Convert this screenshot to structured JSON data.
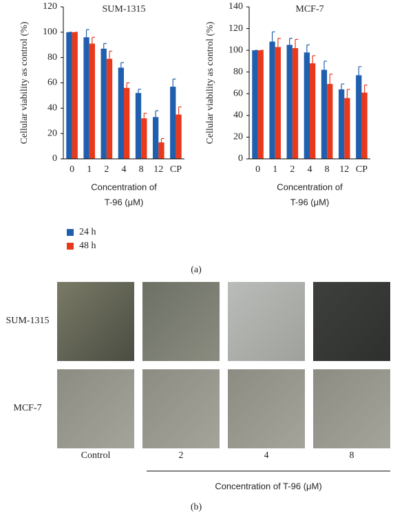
{
  "chart_data": [
    {
      "type": "bar",
      "title": "SUM-1315",
      "ylabel": "Cellular viability as control (%)",
      "xlabel": [
        "Concentration of",
        "T-96 (μM)"
      ],
      "categories": [
        "0",
        "1",
        "2",
        "4",
        "8",
        "12",
        "CP"
      ],
      "series": [
        {
          "name": "24 h",
          "color": "#1f5fae",
          "values": [
            100,
            96,
            87,
            72,
            52,
            33,
            57
          ],
          "errors": [
            0,
            6,
            4,
            4,
            3,
            5,
            6
          ]
        },
        {
          "name": "48 h",
          "color": "#e8391d",
          "values": [
            100,
            91,
            79,
            56,
            32,
            13,
            35
          ],
          "errors": [
            0,
            5,
            6,
            4,
            4,
            3,
            6
          ]
        }
      ],
      "ylim": [
        0,
        120
      ],
      "yticks": [
        0,
        20,
        40,
        60,
        80,
        100,
        120
      ],
      "legend": "bottom-left"
    },
    {
      "type": "bar",
      "title": "MCF-7",
      "ylabel": "Cellular viability as control (%)",
      "xlabel": [
        "Concentration of",
        "T-96 (μM)"
      ],
      "categories": [
        "0",
        "1",
        "2",
        "4",
        "8",
        "12",
        "CP"
      ],
      "series": [
        {
          "color": "#1f5fae",
          "values": [
            100,
            108,
            105,
            98,
            82,
            64,
            77
          ],
          "errors": [
            0,
            9,
            6,
            7,
            8,
            5,
            8
          ]
        },
        {
          "color": "#e8391d",
          "values": [
            100,
            103,
            102,
            88,
            69,
            56,
            61
          ],
          "errors": [
            0,
            8,
            8,
            7,
            9,
            8,
            7
          ]
        }
      ],
      "ylim": [
        0,
        140
      ],
      "yticks": [
        0,
        20,
        40,
        60,
        80,
        100,
        120,
        140
      ]
    }
  ],
  "panel_a_label": "(a)",
  "panel_b": {
    "label": "(b)",
    "rows": [
      "SUM-1315",
      "MCF-7"
    ],
    "columns": [
      "Control",
      "2",
      "4",
      "8"
    ],
    "xlabel": "Concentration of T-96 (μM)"
  }
}
